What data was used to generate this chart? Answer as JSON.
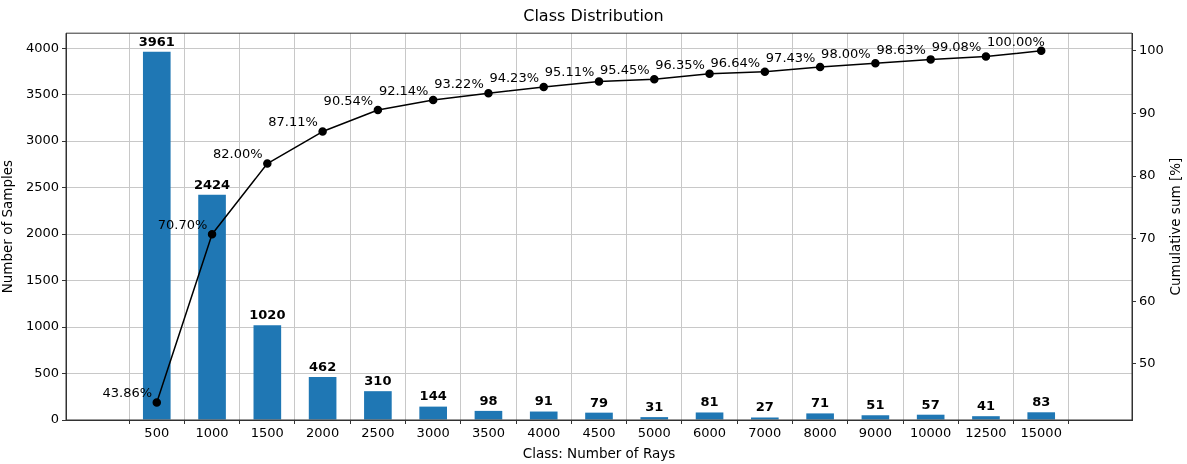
{
  "chart_data": {
    "type": "bar",
    "title": "Class Distribution",
    "xlabel": "Class: Number of Rays",
    "ylabel": "Number of Samples",
    "y2label": "Cumulative sum [%]",
    "categories": [
      "500",
      "1000",
      "1500",
      "2000",
      "2500",
      "3000",
      "3500",
      "4000",
      "4500",
      "5000",
      "6000",
      "7000",
      "8000",
      "9000",
      "10000",
      "12500",
      "15000"
    ],
    "series": [
      {
        "color": "#1f77b4",
        "values": [
          3961,
          2424,
          1020,
          462,
          310,
          144,
          98,
          91,
          79,
          31,
          81,
          27,
          71,
          51,
          57,
          41,
          83
        ],
        "value_labels": [
          "3961",
          "2424",
          "1020",
          "462",
          "310",
          "144",
          "98",
          "91",
          "79",
          "31",
          "81",
          "27",
          "71",
          "51",
          "57",
          "41",
          "83"
        ]
      },
      {
        "type": "line",
        "axis": "y2",
        "color": "#000000",
        "values": [
          43.86,
          70.7,
          82.0,
          87.11,
          90.54,
          92.14,
          93.22,
          94.23,
          95.11,
          95.45,
          96.35,
          96.64,
          97.43,
          98.0,
          98.63,
          99.08,
          100.0
        ],
        "value_labels": [
          "43.86%",
          "70.70%",
          "82.00%",
          "87.11%",
          "90.54%",
          "92.14%",
          "93.22%",
          "94.23%",
          "95.11%",
          "95.45%",
          "96.35%",
          "96.64%",
          "97.43%",
          "98.00%",
          "98.63%",
          "99.08%",
          "100.00%"
        ]
      }
    ],
    "ylim": [
      0,
      4161
    ],
    "yticks": [
      0,
      500,
      1000,
      1500,
      2000,
      2500,
      3000,
      3500,
      4000
    ],
    "y2lim": [
      41.05,
      102.81
    ],
    "y2ticks": [
      50,
      60,
      70,
      80,
      90,
      100
    ],
    "grid": true,
    "legend": false,
    "marker": "circle",
    "line_style": "solid"
  }
}
